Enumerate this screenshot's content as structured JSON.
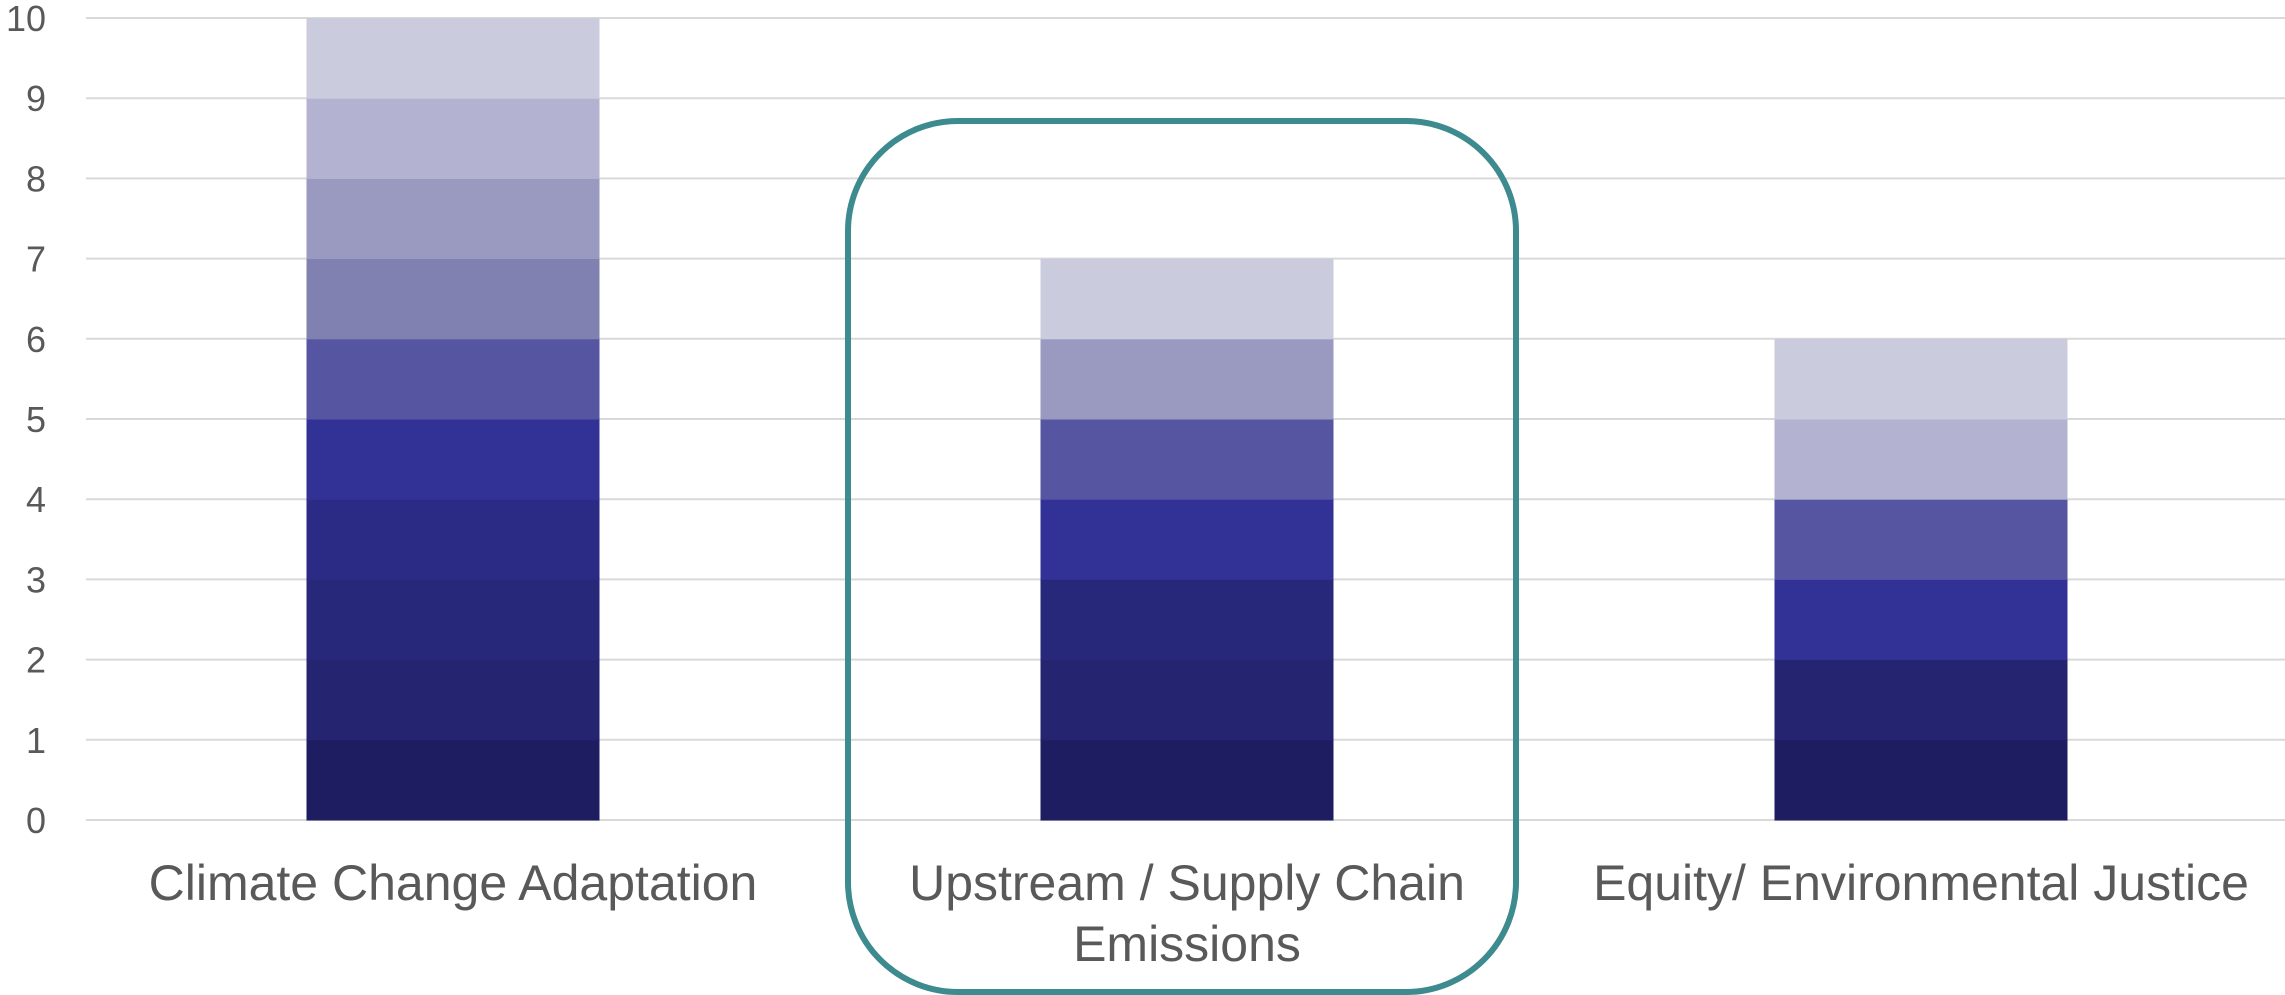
{
  "chart_data": {
    "type": "bar",
    "stacked": true,
    "categories": [
      [
        "Climate Change Adaptation"
      ],
      [
        "Upstream / Supply Chain",
        "Emissions"
      ],
      [
        "Equity/ Environmental Justice"
      ]
    ],
    "values": [
      10,
      7,
      6
    ],
    "segment_unit": 1,
    "ylim": [
      0,
      10
    ],
    "yticks": [
      0,
      1,
      2,
      3,
      4,
      5,
      6,
      7,
      8,
      9,
      10
    ],
    "grid": true,
    "highlighted_category_index": 1,
    "colors": {
      "highlight_box": "#3d8b8f",
      "gridline": "#d9d9d9",
      "text": "#595959",
      "segment_palette": [
        "#1f1d61",
        "#242470",
        "#28287a",
        "#2b2b86",
        "#323296",
        "#5555a2",
        "#8080b1",
        "#9a9ac1",
        "#b3b3d1",
        "#cbcbde"
      ],
      "category_segment_colors": [
        [
          "#1f1d61",
          "#242470",
          "#28287a",
          "#2b2b86",
          "#323296",
          "#5555a2",
          "#8080b1",
          "#9a9ac1",
          "#b3b3d1",
          "#cbcbde"
        ],
        [
          "#1f1d61",
          "#242470",
          "#28287a",
          "#323296",
          "#5555a2",
          "#9a9ac1",
          "#cbcbde"
        ],
        [
          "#1f1d61",
          "#242470",
          "#323296",
          "#5555a2",
          "#b3b3d1",
          "#cbcbde"
        ]
      ]
    }
  }
}
